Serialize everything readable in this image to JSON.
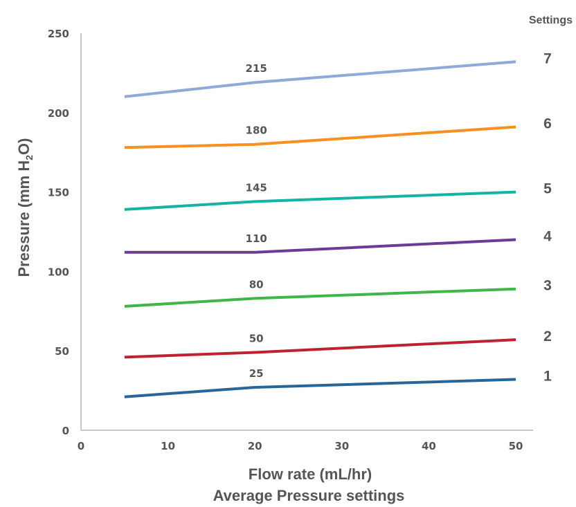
{
  "chart_data": {
    "type": "line",
    "xlabel": "Flow rate  (mL/hr)",
    "caption": "Average Pressure settings",
    "ylabel_main": "Pressure (mm H",
    "ylabel_sub": "2",
    "ylabel_end": "O)",
    "legend_title": "Settings",
    "xlim": [
      0,
      50
    ],
    "ylim": [
      0,
      250
    ],
    "x_ticks": [
      "0",
      "10",
      "20",
      "30",
      "40",
      "50"
    ],
    "y_ticks": [
      "0",
      "50",
      "100",
      "150",
      "200",
      "250"
    ],
    "x": [
      5,
      20,
      50
    ],
    "series": [
      {
        "name": "1",
        "color": "#2a6598",
        "values": [
          21,
          27,
          32
        ],
        "label": "25"
      },
      {
        "name": "2",
        "color": "#be2230",
        "values": [
          46,
          49,
          57
        ],
        "label": "50"
      },
      {
        "name": "3",
        "color": "#3fb54a",
        "values": [
          78,
          83,
          89
        ],
        "label": "80"
      },
      {
        "name": "4",
        "color": "#6d3b97",
        "values": [
          112,
          112,
          120
        ],
        "label": "110"
      },
      {
        "name": "5",
        "color": "#13b4a3",
        "values": [
          139,
          144,
          150
        ],
        "label": "145"
      },
      {
        "name": "6",
        "color": "#f7901e",
        "values": [
          178,
          180,
          191
        ],
        "label": "180"
      },
      {
        "name": "7",
        "color": "#8fa9d9",
        "values": [
          210,
          219,
          232
        ],
        "label": "215"
      }
    ]
  }
}
